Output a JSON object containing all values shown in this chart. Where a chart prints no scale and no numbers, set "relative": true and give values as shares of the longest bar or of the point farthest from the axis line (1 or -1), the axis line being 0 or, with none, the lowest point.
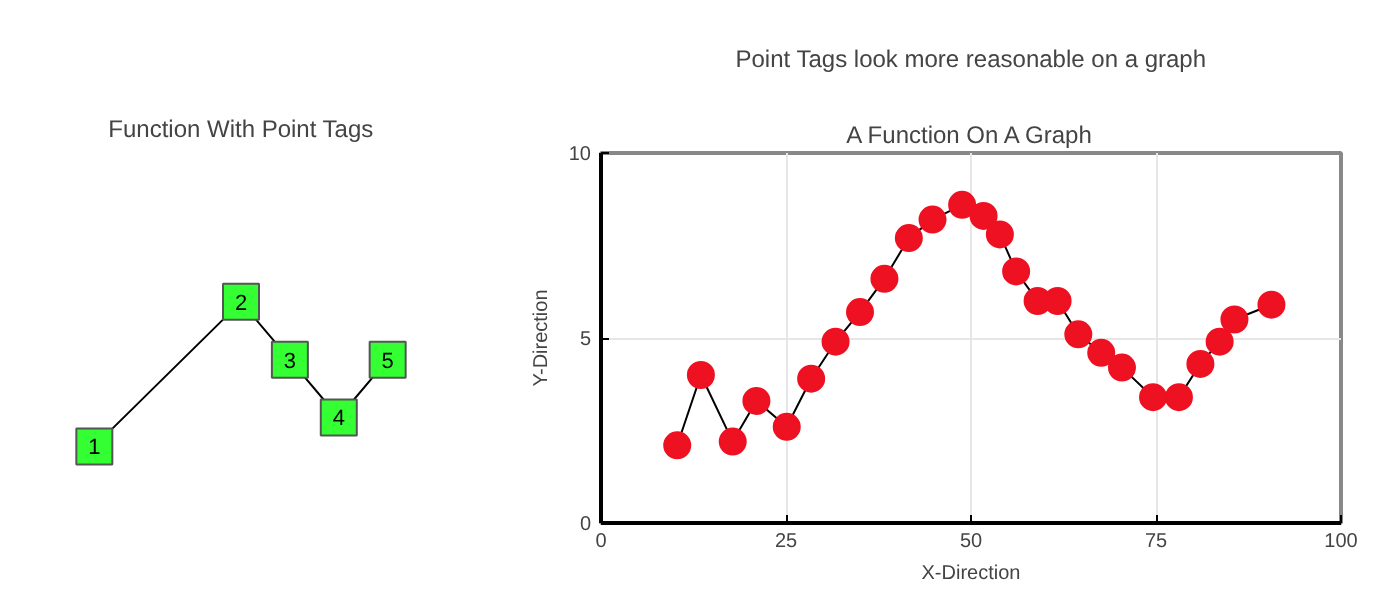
{
  "chart_data": [
    {
      "type": "line",
      "title": "Function With Point Tags",
      "relative": true,
      "marker": "square",
      "categories": [
        null,
        null,
        null,
        null,
        null,
        null,
        null
      ],
      "annotations": [
        "1",
        "2",
        "3",
        "4",
        "5"
      ],
      "series": [
        {
          "color": "#000000",
          "colors": [
            "#33ff33",
            null,
            null,
            "#33ff33",
            "#33ff33",
            "#33ff33",
            "#33ff33"
          ],
          "values": [
            0,
            null,
            null,
            1,
            0.6,
            0.2,
            0.6
          ]
        }
      ]
    },
    {
      "type": "line",
      "title": "Point Tags look more reasonable on a graph",
      "subtitle": "A Function On A Graph",
      "xlabel": "X-Direction",
      "ylabel": "Y-Direction",
      "xlim": [
        0,
        100
      ],
      "ylim": [
        0,
        10
      ],
      "xticks": [
        0,
        25,
        50,
        75,
        100
      ],
      "yticks": [
        0,
        5,
        10
      ],
      "grid": true,
      "marker": "circle",
      "x": [
        10.3,
        13.5,
        17.8,
        21.0,
        25.1,
        28.4,
        31.7,
        35.0,
        38.3,
        41.6,
        44.8,
        48.8,
        51.7,
        53.9,
        56.1,
        59.0,
        61.7,
        64.5,
        67.6,
        70.4,
        74.6,
        78.1,
        81.0,
        83.6,
        85.6,
        90.6
      ],
      "series": [
        {
          "color": "#000000",
          "colors": [
            "#ee1122",
            "#ee1122",
            "#ee1122",
            "#ee1122",
            "#ee1122",
            "#ee1122",
            "#ee1122",
            "#ee1122",
            "#ee1122",
            "#ee1122",
            "#ee1122",
            "#ee1122",
            "#ee1122",
            "#ee1122",
            "#ee1122",
            "#ee1122",
            "#ee1122",
            "#ee1122",
            "#ee1122",
            "#ee1122",
            "#ee1122",
            "#ee1122",
            "#ee1122",
            "#ee1122",
            "#ee1122",
            "#ee1122"
          ],
          "values": [
            2.1,
            4.0,
            2.2,
            3.3,
            2.6,
            3.9,
            4.9,
            5.7,
            6.6,
            7.7,
            8.2,
            8.6,
            8.3,
            7.8,
            6.8,
            6.0,
            6.0,
            5.1,
            4.6,
            4.2,
            3.4,
            3.4,
            4.3,
            4.9,
            5.5,
            5.9
          ]
        }
      ]
    }
  ]
}
